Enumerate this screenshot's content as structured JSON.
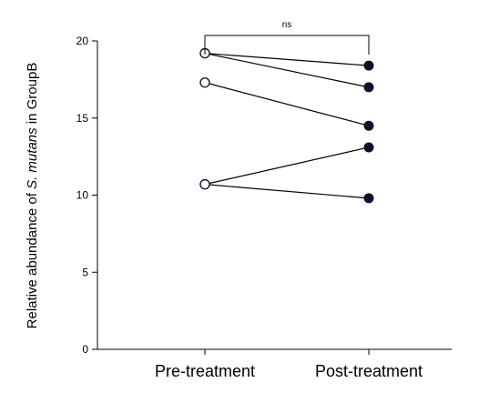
{
  "chart_data": {
    "type": "scatter",
    "subtype": "paired-before-after",
    "categories": [
      "Pre-treatment",
      "Post-treatment"
    ],
    "ylabel_parts": [
      "Relative abundance of ",
      "S. mutans",
      " in GroupB"
    ],
    "ylim": [
      0,
      20
    ],
    "yticks": [
      0,
      5,
      10,
      15,
      20
    ],
    "pairs": [
      {
        "pre": 19.2,
        "post": 18.4
      },
      {
        "pre": 19.2,
        "post": 17.0
      },
      {
        "pre": 17.3,
        "post": 14.5
      },
      {
        "pre": 10.7,
        "post": 13.1
      },
      {
        "pre": 10.7,
        "post": 9.8
      }
    ],
    "significance": {
      "label": "ns",
      "from": "Pre-treatment",
      "to": "Post-treatment"
    },
    "colors": {
      "line": "#000000",
      "pre_fill": "#ffffff",
      "post_fill": "#1a0a2e"
    },
    "grid": false,
    "legend": "none"
  }
}
